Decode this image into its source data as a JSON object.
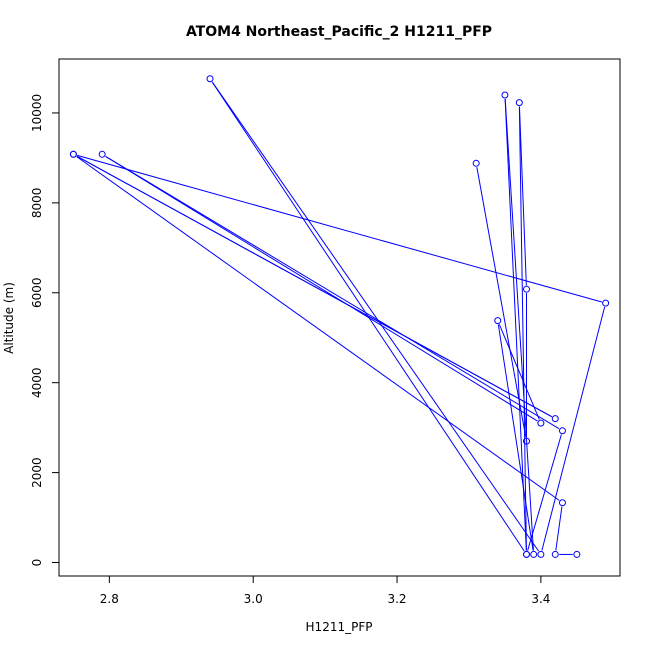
{
  "chart_data": {
    "type": "scatter",
    "title": "ATOM4 Northeast_Pacific_2 H1211_PFP",
    "xlabel": "H1211_PFP",
    "ylabel": "Altitude (m)",
    "xlim": [
      2.73,
      3.51
    ],
    "ylim": [
      -300,
      11200
    ],
    "xticks": [
      2.8,
      3.0,
      3.2,
      3.4
    ],
    "yticks": [
      0,
      2000,
      4000,
      6000,
      8000,
      10000
    ],
    "grid": false,
    "color": "#0000ff",
    "series": [
      {
        "points": [
          {
            "x": 3.31,
            "y": 8880
          },
          {
            "x": 3.38,
            "y": 2700
          },
          {
            "x": 3.38,
            "y": 6080
          },
          {
            "x": 3.37,
            "y": 10230
          },
          {
            "x": 3.38,
            "y": 180
          },
          {
            "x": 3.35,
            "y": 10400
          },
          {
            "x": 3.39,
            "y": 180
          },
          {
            "x": 3.34,
            "y": 5380
          },
          {
            "x": 3.4,
            "y": 3100
          },
          {
            "x": 2.79,
            "y": 9080
          },
          {
            "x": 3.43,
            "y": 2930
          },
          {
            "x": 3.38,
            "y": 180
          },
          {
            "x": 2.94,
            "y": 10760
          },
          {
            "x": 3.4,
            "y": 180
          },
          {
            "x": 3.49,
            "y": 5770
          },
          {
            "x": 2.75,
            "y": 9080
          },
          {
            "x": 3.42,
            "y": 3200
          },
          {
            "x": 2.75,
            "y": 9080
          },
          {
            "x": 3.43,
            "y": 1330
          },
          {
            "x": 3.42,
            "y": 180
          },
          {
            "x": 3.45,
            "y": 180
          }
        ]
      }
    ]
  }
}
